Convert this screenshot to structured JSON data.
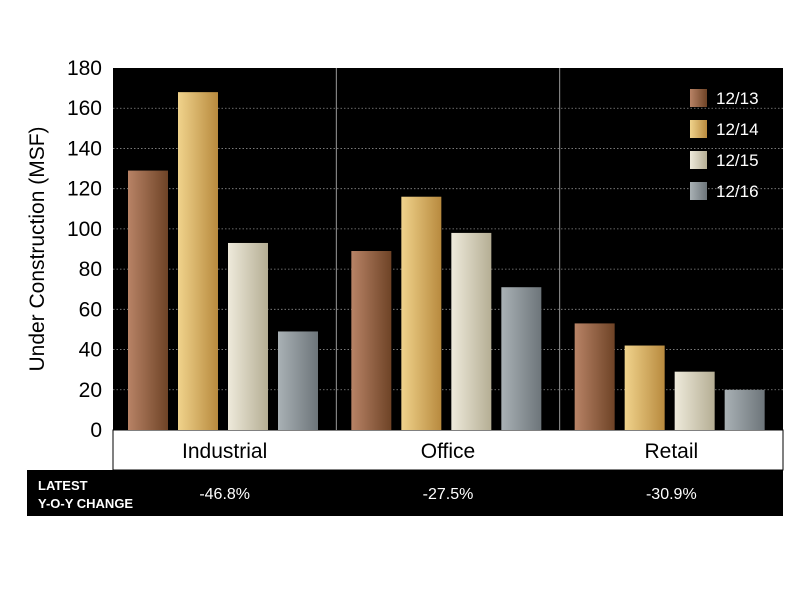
{
  "chart_data": {
    "type": "bar",
    "title": "",
    "xlabel": "",
    "ylabel": "Under Construction (MSF)",
    "ylim": [
      0,
      180
    ],
    "yticks": [
      0,
      20,
      40,
      60,
      80,
      100,
      120,
      140,
      160,
      180
    ],
    "categories": [
      "Industrial",
      "Office",
      "Retail"
    ],
    "series": [
      {
        "name": "12/13",
        "values": [
          129,
          89,
          53
        ]
      },
      {
        "name": "12/14",
        "values": [
          168,
          116,
          42
        ]
      },
      {
        "name": "12/15",
        "values": [
          93,
          98,
          29
        ]
      },
      {
        "name": "12/16",
        "values": [
          49,
          71,
          20
        ]
      }
    ],
    "legend_position": "top-right",
    "grid": "horizontal dotted",
    "footer": {
      "label_line1": "LATEST",
      "label_line2": "Y-O-Y CHANGE",
      "values": [
        "-46.8%",
        "-27.5%",
        "-30.9%"
      ]
    },
    "colors": {
      "background": "#000000",
      "series": [
        "#8b5a3a",
        "#d9b56a",
        "#d8d3bf",
        "#8e969b"
      ]
    }
  }
}
